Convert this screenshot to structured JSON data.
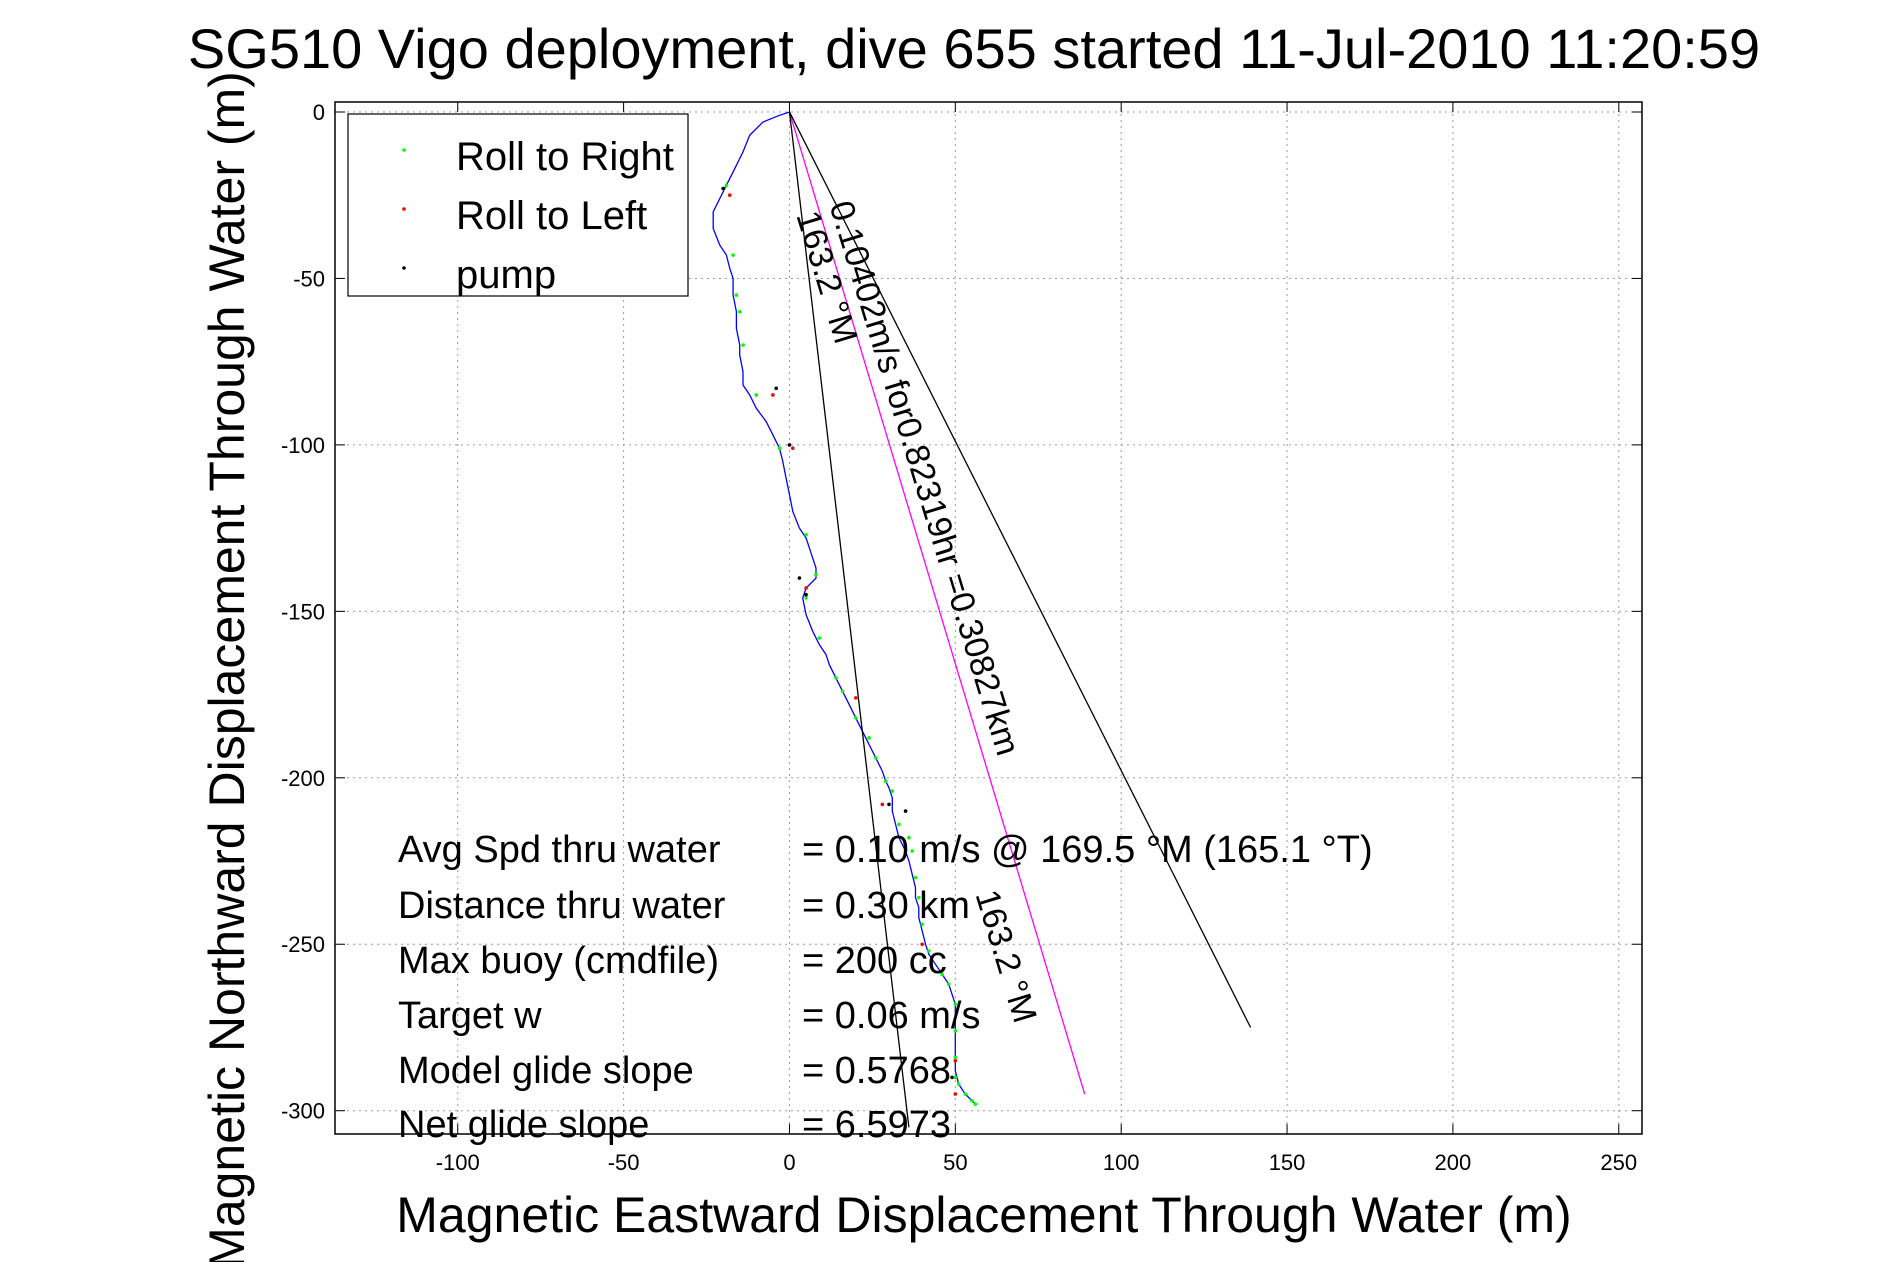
{
  "chart_data": {
    "type": "line",
    "title": "SG510 Vigo deployment, dive 655 started 11-Jul-2010 11:20:59",
    "xlabel": "Magnetic Eastward Displacement Through Water (m)",
    "ylabel": "Magnetic Northward Displacement Through Water (m)",
    "xlim": [
      -137,
      257
    ],
    "ylim": [
      -307,
      3
    ],
    "xticks": [
      -100,
      -50,
      0,
      50,
      100,
      150,
      200,
      250
    ],
    "yticks": [
      0,
      -50,
      -100,
      -150,
      -200,
      -250,
      -300
    ],
    "xtick_labels": [
      "-100",
      "-50",
      "0",
      "50",
      "100",
      "150",
      "200",
      "250"
    ],
    "ytick_labels": [
      "0",
      "-50",
      "-100",
      "-150",
      "-200",
      "-250",
      "-300"
    ],
    "grid": true,
    "legend": {
      "placement": "top-left",
      "entries": [
        {
          "label": "Roll to Right",
          "color": "#00ff00"
        },
        {
          "label": "Roll to Left",
          "color": "#ff0000"
        },
        {
          "label": "pump",
          "color": "#000000"
        }
      ]
    },
    "series": [
      {
        "color": "#0000ff",
        "x": [
          0,
          -3,
          -8,
          -12,
          -14,
          -17,
          -19,
          -21,
          -23,
          -23,
          -21,
          -19,
          -18,
          -17,
          -17,
          -16,
          -16,
          -15,
          -15,
          -14,
          -14,
          -12,
          -10,
          -7,
          -5,
          -3,
          -2,
          -1,
          0,
          1,
          3,
          5,
          6,
          7,
          8,
          8,
          8,
          7,
          5,
          4,
          5,
          7,
          9,
          11,
          12,
          14,
          16,
          18,
          20,
          22,
          24,
          26,
          28,
          29,
          30,
          31,
          31,
          32,
          33,
          35,
          36,
          37,
          38,
          38,
          39,
          39,
          40,
          41,
          42,
          44,
          46,
          48,
          49,
          50,
          50,
          50,
          50,
          50,
          50,
          51,
          53,
          55,
          56
        ],
        "y": [
          0,
          -1,
          -3,
          -7,
          -12,
          -18,
          -22,
          -26,
          -30,
          -35,
          -40,
          -43,
          -47,
          -50,
          -55,
          -60,
          -65,
          -70,
          -73,
          -78,
          -82,
          -85,
          -89,
          -93,
          -97,
          -101,
          -105,
          -110,
          -115,
          -120,
          -125,
          -128,
          -131,
          -134,
          -137,
          -139,
          -140,
          -141,
          -143,
          -146,
          -151,
          -156,
          -160,
          -163,
          -166,
          -170,
          -174,
          -178,
          -182,
          -186,
          -190,
          -194,
          -198,
          -201,
          -203,
          -206,
          -210,
          -214,
          -218,
          -222,
          -225,
          -229,
          -233,
          -236,
          -239,
          -242,
          -246,
          -250,
          -253,
          -256,
          -259,
          -262,
          -265,
          -268,
          -272,
          -276,
          -280,
          -284,
          -288,
          -292,
          -295,
          -297,
          -298
        ]
      },
      {
        "color": "#00ff00",
        "x": [
          -19,
          -17,
          -16,
          -15,
          -14,
          -10,
          -3,
          5,
          8,
          5,
          9,
          14,
          16,
          20,
          24,
          26,
          29,
          31,
          33,
          36,
          37,
          38,
          39,
          40,
          42,
          46,
          48,
          50,
          50,
          50,
          50,
          51,
          53,
          55,
          56
        ],
        "y": [
          -22,
          -43,
          -55,
          -60,
          -70,
          -85,
          -101,
          -127,
          -139,
          -146,
          -158,
          -170,
          -174,
          -182,
          -188,
          -194,
          -201,
          -204,
          -214,
          -218,
          -222,
          -230,
          -236,
          -244,
          -252,
          -259,
          -262,
          -268,
          -276,
          -284,
          -290,
          -292,
          -295,
          -297,
          -298
        ]
      },
      {
        "color": "#ff0000",
        "x": [
          -18,
          -5,
          1,
          5,
          20,
          28,
          40,
          50,
          50
        ],
        "y": [
          -25,
          -85,
          -101,
          -143,
          -176,
          -208,
          -250,
          -285,
          -295
        ]
      },
      {
        "color": "#000000",
        "x": [
          -20,
          -4,
          0,
          3,
          5,
          30,
          35,
          49
        ],
        "y": [
          -23,
          -83,
          -100,
          -140,
          -145,
          -208,
          -210,
          -290
        ]
      },
      {
        "color": "#ff00ff",
        "x": [
          0,
          89
        ],
        "y": [
          0,
          -295
        ]
      },
      {
        "color": "#000000",
        "x": [
          0,
          36
        ],
        "y": [
          0,
          -305
        ]
      },
      {
        "color": "#000000",
        "x": [
          0,
          139
        ],
        "y": [
          0,
          -275
        ]
      }
    ],
    "annotations": [
      {
        "text": "0.10402m/s for0.82319hr =0.30827km",
        "x": 12,
        "y": -28,
        "angle_deg": 73
      },
      {
        "text": "163.2 °M",
        "x": 2,
        "y": -31,
        "angle_deg": 73
      },
      {
        "text": "163.2 °M",
        "x": 56,
        "y": -235,
        "angle_deg": 73
      }
    ],
    "stats": [
      {
        "label": "Avg Spd thru water",
        "value": "=  0.10 m/s @ 169.5 °M (165.1 °T)"
      },
      {
        "label": "Distance thru water",
        "value": "=  0.30 km"
      },
      {
        "label": "Max buoy (cmdfile)",
        "value": "= 200 cc"
      },
      {
        "label": "Target w",
        "value": "= 0.06 m/s"
      },
      {
        "label": "Model glide slope",
        "value": "= 0.5768"
      },
      {
        "label": "Net glide slope",
        "value": "= 6.5973"
      }
    ]
  }
}
